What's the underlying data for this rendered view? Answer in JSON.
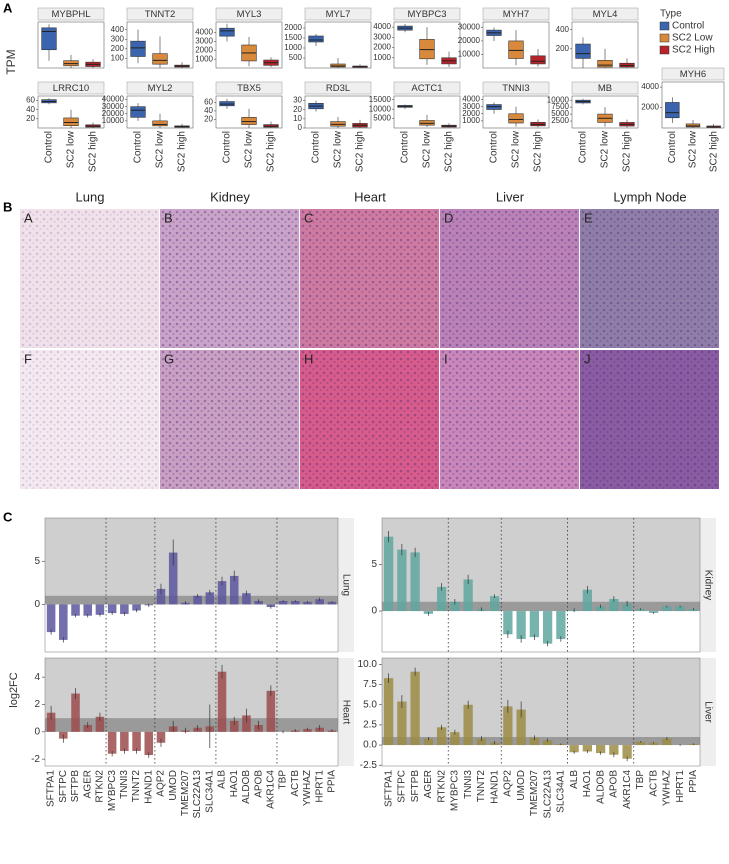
{
  "panel_labels": [
    "A",
    "B",
    "C"
  ],
  "panel_a": {
    "y_label": "TPM",
    "categories": [
      "Control",
      "SC2 low",
      "SC2 high"
    ],
    "legend": {
      "title": "Type",
      "series": [
        {
          "name": "Control",
          "color": "#3a64ad"
        },
        {
          "name": "SC2 Low",
          "color": "#d9893b"
        },
        {
          "name": "SC2 High",
          "color": "#b8242b"
        }
      ]
    }
  },
  "panel_b": {
    "columns": [
      "Lung",
      "Kidney",
      "Heart",
      "Liver",
      "Lymph Node"
    ],
    "letters": [
      "A",
      "B",
      "C",
      "D",
      "E",
      "F",
      "G",
      "H",
      "I",
      "J"
    ]
  },
  "panel_c": {
    "y_label": "log2FC",
    "genes": [
      "SFTPA1",
      "SFTPC",
      "SFTPB",
      "AGER",
      "RTKN2",
      "MYBPC3",
      "TNNI3",
      "TNNT2",
      "HAND1",
      "AQP2",
      "UMOD",
      "TMEM207",
      "SLC22A13",
      "SLC34A1",
      "ALB",
      "HAO1",
      "ALDOB",
      "APOB",
      "AKR1C4",
      "TBP",
      "ACTB",
      "YWHAZ",
      "HPRT1",
      "PPIA"
    ]
  },
  "chart_data": [
    {
      "type": "box",
      "title": "MYBPHL",
      "ylim": [
        0,
        6.3
      ],
      "boxes": [
        [
          1,
          2.5,
          5,
          5.5,
          6
        ],
        [
          0,
          0.3,
          0.6,
          1,
          1.8
        ],
        [
          0,
          0.2,
          0.5,
          0.8,
          1.2
        ]
      ]
    },
    {
      "type": "box",
      "title": "TNNT2",
      "ylim": [
        0,
        480
      ],
      "yticks": [
        100,
        200,
        300,
        400
      ],
      "boxes": [
        [
          50,
          120,
          210,
          280,
          400
        ],
        [
          0,
          40,
          80,
          150,
          330
        ],
        [
          0,
          10,
          20,
          30,
          60
        ]
      ]
    },
    {
      "type": "box",
      "title": "MYL3",
      "ylim": [
        0,
        5200
      ],
      "yticks": [
        1000,
        2000,
        3000,
        4000
      ],
      "boxes": [
        [
          3000,
          3600,
          4200,
          4500,
          5000
        ],
        [
          200,
          800,
          1700,
          2600,
          3500
        ],
        [
          100,
          300,
          600,
          900,
          1200
        ]
      ]
    },
    {
      "type": "box",
      "title": "MYL7",
      "ylim": [
        0,
        2300
      ],
      "yticks": [
        500,
        1000,
        1500,
        2000
      ],
      "boxes": [
        [
          1100,
          1300,
          1400,
          1600,
          1700
        ],
        [
          0,
          50,
          100,
          200,
          500
        ],
        [
          0,
          30,
          60,
          100,
          180
        ]
      ]
    },
    {
      "type": "box",
      "title": "MYBPC3",
      "ylim": [
        0,
        4500
      ],
      "yticks": [
        1000,
        2000,
        3000,
        4000
      ],
      "boxes": [
        [
          3500,
          3700,
          3900,
          4100,
          4300
        ],
        [
          300,
          900,
          1800,
          2800,
          4000
        ],
        [
          100,
          400,
          700,
          1000,
          1600
        ]
      ]
    },
    {
      "type": "box",
      "title": "MYH7",
      "ylim": [
        0,
        34000
      ],
      "yticks": [
        10000,
        20000,
        30000
      ],
      "boxes": [
        [
          20000,
          24000,
          26000,
          28000,
          30000
        ],
        [
          2000,
          7000,
          13000,
          20000,
          28000
        ],
        [
          1000,
          3000,
          5000,
          9000,
          14000
        ]
      ]
    },
    {
      "type": "box",
      "title": "MYL4",
      "ylim": [
        0,
        480
      ],
      "yticks": [
        200,
        400
      ],
      "boxes": [
        [
          0,
          100,
          150,
          250,
          320
        ],
        [
          0,
          10,
          30,
          80,
          200
        ],
        [
          0,
          10,
          25,
          50,
          100
        ]
      ]
    },
    {
      "type": "box",
      "title": "LRRC10",
      "ylim": [
        0,
        70
      ],
      "yticks": [
        20,
        40,
        60
      ],
      "boxes": [
        [
          52,
          55,
          58,
          62,
          65
        ],
        [
          0,
          5,
          12,
          22,
          40
        ],
        [
          0,
          2,
          4,
          7,
          12
        ]
      ]
    },
    {
      "type": "box",
      "title": "MYL2",
      "ylim": [
        0,
        45000
      ],
      "yticks": [
        10000,
        20000,
        30000,
        40000
      ],
      "boxes": [
        [
          10000,
          15000,
          25000,
          30000,
          35000
        ],
        [
          0,
          3000,
          5000,
          10000,
          20000
        ],
        [
          0,
          1000,
          2000,
          3000,
          6000
        ]
      ]
    },
    {
      "type": "box",
      "title": "TBX5",
      "ylim": [
        0,
        75
      ],
      "yticks": [
        20,
        40,
        60
      ],
      "boxes": [
        [
          45,
          52,
          56,
          62,
          68
        ],
        [
          0,
          8,
          15,
          25,
          45
        ],
        [
          0,
          2,
          4,
          8,
          15
        ]
      ]
    },
    {
      "type": "box",
      "title": "RD3L",
      "ylim": [
        0,
        35
      ],
      "yticks": [
        0,
        10,
        20,
        30
      ],
      "boxes": [
        [
          18,
          21,
          24,
          27,
          30
        ],
        [
          0,
          2,
          4,
          7,
          12
        ],
        [
          0,
          1,
          3,
          5,
          9
        ]
      ]
    },
    {
      "type": "box",
      "title": "ACTC1",
      "ylim": [
        0,
        17000
      ],
      "yticks": [
        5000,
        10000,
        15000
      ],
      "boxes": [
        [
          10000,
          11000,
          11500,
          12000,
          12500
        ],
        [
          500,
          1500,
          2500,
          4000,
          7000
        ],
        [
          200,
          500,
          1000,
          1500,
          2500
        ]
      ]
    },
    {
      "type": "box",
      "title": "TNNI3",
      "ylim": [
        0,
        4500
      ],
      "yticks": [
        1000,
        2000,
        3000,
        4000
      ],
      "boxes": [
        [
          2000,
          2600,
          3000,
          3300,
          3600
        ],
        [
          200,
          700,
          1200,
          2000,
          3000
        ],
        [
          100,
          300,
          500,
          800,
          1200
        ]
      ]
    },
    {
      "type": "box",
      "title": "MB",
      "ylim": [
        0,
        11500
      ],
      "yticks": [
        2500,
        5000,
        7500,
        10000
      ],
      "boxes": [
        [
          8500,
          9000,
          9500,
          10000,
          10500
        ],
        [
          500,
          2000,
          3500,
          5000,
          7500
        ],
        [
          200,
          700,
          1300,
          2000,
          3000
        ]
      ]
    },
    {
      "type": "box",
      "title": "MYH6",
      "ylim": [
        0,
        4500
      ],
      "yticks": [
        2000,
        4000
      ],
      "boxes": [
        [
          500,
          1000,
          1500,
          2500,
          3000
        ],
        [
          0,
          100,
          200,
          400,
          800
        ],
        [
          0,
          50,
          100,
          200,
          400
        ]
      ]
    },
    {
      "type": "bar",
      "facet": "Lung",
      "color": "#5a559d",
      "ylim": [
        -5.5,
        10
      ],
      "yticks": [
        0,
        5
      ],
      "band": [
        0,
        1
      ],
      "values": [
        -3.2,
        -4.1,
        -1.3,
        -1.3,
        -1.2,
        -1.0,
        -1.1,
        -0.7,
        -0.1,
        1.8,
        6.0,
        0.2,
        1.0,
        1.4,
        2.7,
        3.3,
        1.3,
        0.4,
        -0.3,
        0.4,
        0.4,
        0.3,
        0.6,
        0.3
      ],
      "errors": [
        0.3,
        0.3,
        0.2,
        0.2,
        0.2,
        0.2,
        0.2,
        0.2,
        0.2,
        0.6,
        1.5,
        0.2,
        0.2,
        0.3,
        0.5,
        0.6,
        0.3,
        0.2,
        0.2,
        0.1,
        0.1,
        0.1,
        0.2,
        0.1
      ]
    },
    {
      "type": "bar",
      "facet": "Kidney",
      "color": "#5fa7a0",
      "ylim": [
        -4.4,
        10
      ],
      "yticks": [
        0,
        5
      ],
      "band": [
        0,
        1
      ],
      "values": [
        8.0,
        6.6,
        6.3,
        -0.3,
        2.6,
        1.0,
        3.4,
        0.2,
        1.6,
        -2.5,
        -3.0,
        -2.8,
        -3.5,
        -3.0,
        0.1,
        2.3,
        0.5,
        1.3,
        0.8,
        0.2,
        -0.2,
        0.5,
        0.5,
        0.2
      ],
      "errors": [
        0.6,
        0.6,
        0.5,
        0.2,
        0.4,
        0.3,
        0.5,
        0.2,
        0.2,
        0.4,
        0.4,
        0.3,
        0.3,
        0.3,
        0.2,
        0.4,
        0.2,
        0.3,
        0.3,
        0.1,
        0.1,
        0.1,
        0.1,
        0.1
      ]
    },
    {
      "type": "bar",
      "facet": "Heart",
      "color": "#9c4c4c",
      "ylim": [
        -2.5,
        5.4
      ],
      "yticks": [
        -2,
        0,
        2,
        4
      ],
      "band": [
        0,
        1
      ],
      "values": [
        1.4,
        -0.5,
        2.8,
        0.5,
        1.1,
        -1.6,
        -1.4,
        -1.4,
        -1.7,
        -0.8,
        0.4,
        0.1,
        0.3,
        0.4,
        4.4,
        0.8,
        1.2,
        0.5,
        3.0,
        0.0,
        0.1,
        0.2,
        0.3,
        0.1
      ],
      "errors": [
        0.5,
        0.3,
        0.4,
        0.2,
        0.3,
        0.2,
        0.2,
        0.2,
        0.2,
        0.3,
        0.4,
        0.2,
        0.2,
        1.6,
        0.5,
        0.3,
        0.5,
        0.3,
        0.4,
        0.1,
        0.1,
        0.1,
        0.2,
        0.1
      ]
    },
    {
      "type": "bar",
      "facet": "Liver",
      "color": "#9c8c44",
      "ylim": [
        -2.6,
        10.8
      ],
      "yticks": [
        {
          "value": -2.5,
          "label": "-2.5"
        },
        {
          "value": 0,
          "label": "0.0"
        },
        {
          "value": 2.5,
          "label": "2.5"
        },
        {
          "value": 5,
          "label": "5.0"
        },
        {
          "value": 7.5,
          "label": "7.5"
        },
        {
          "value": 10,
          "label": "10.0"
        }
      ],
      "band": [
        0,
        1
      ],
      "values": [
        8.3,
        5.4,
        9.1,
        0.8,
        2.2,
        1.6,
        5.0,
        0.8,
        0.3,
        4.8,
        4.4,
        0.9,
        0.6,
        0.1,
        -0.9,
        -0.8,
        -1.0,
        -1.2,
        -1.7,
        0.4,
        0.3,
        0.8,
        0.0,
        0.1
      ],
      "errors": [
        0.6,
        0.8,
        0.5,
        0.2,
        0.3,
        0.3,
        0.5,
        0.3,
        0.2,
        0.8,
        1.0,
        0.3,
        0.2,
        0.1,
        0.2,
        0.2,
        0.2,
        0.3,
        0.3,
        0.1,
        0.1,
        0.2,
        0.1,
        0.1
      ]
    }
  ]
}
